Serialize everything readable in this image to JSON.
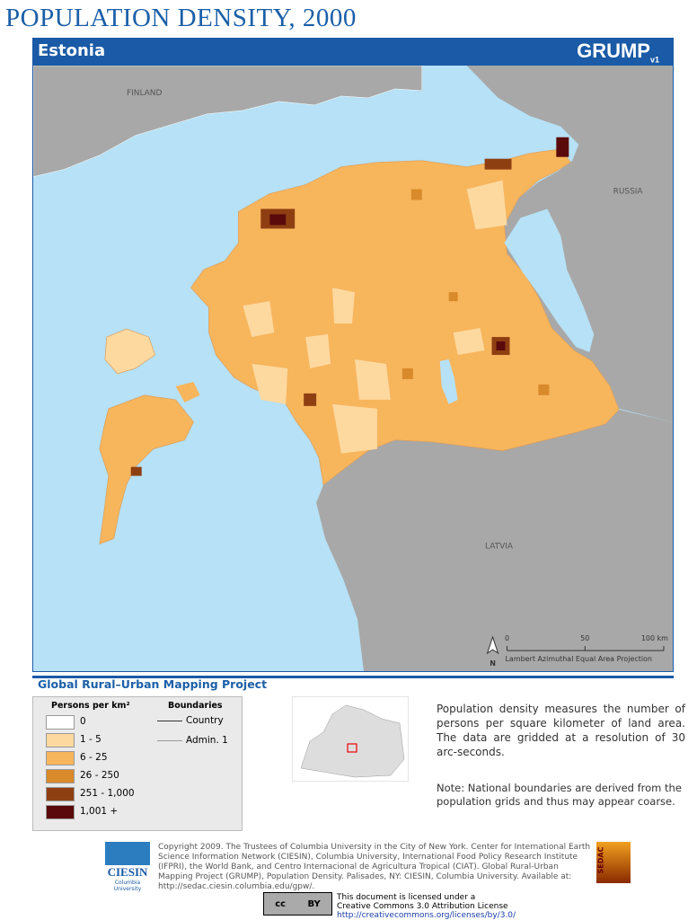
{
  "header": {
    "title": "POPULATION DENSITY, 2000",
    "country": "Estonia",
    "logo": "GRUMP",
    "logo_version": "v1"
  },
  "map": {
    "labels": {
      "finland": "FINLAND",
      "russia": "RUSSIA",
      "latvia": "LATVIA"
    },
    "scale": {
      "ticks": [
        "0",
        "50",
        "100 km"
      ],
      "projection": "Lambert Azimuthal Equal Area Projection",
      "north": "N"
    }
  },
  "project": "Global Rural–Urban Mapping Project",
  "legend": {
    "title": "Persons per km²",
    "items": [
      {
        "label": "0",
        "color": "#ffffff"
      },
      {
        "label": "1 - 5",
        "color": "#fdd9a0"
      },
      {
        "label": "6 - 25",
        "color": "#f7b55c"
      },
      {
        "label": "26 - 250",
        "color": "#d98a2a"
      },
      {
        "label": "251 - 1,000",
        "color": "#8e3f12"
      },
      {
        "label": "1,001 +",
        "color": "#5a0a0a"
      }
    ],
    "boundaries_title": "Boundaries",
    "boundaries": [
      "Country",
      "Admin. 1"
    ]
  },
  "description": "Population density measures the number of persons per square kilometer of land area. The data are gridded at a resolution of 30 arc-seconds.",
  "note": "Note: National boundaries are derived from the population grids and thus may appear coarse.",
  "footer": {
    "ciesin": "CIESIN",
    "ciesin_sub": "Columbia University",
    "copyright": "Copyright 2009. The Trustees of Columbia University in the City of New York. Center for International Earth Science Information Network (CIESIN), Columbia University, International Food Policy Research Institute (IFPRI), the World Bank, and Centro Internacional de Agricultura Tropical (CIAT). Global Rural-Urban Mapping Project (GRUMP), Population Density. Palisades, NY: CIESIN, Columbia University. Available at: http://sedac.ciesin.columbia.edu/gpw/.",
    "sedac": "SEDAC",
    "cc": "cc",
    "by": "BY",
    "license": [
      "This document is licensed under a",
      "Creative Commons 3.0 Attribution License",
      "http://creativecommons.org/licenses/by/3.0/"
    ]
  }
}
